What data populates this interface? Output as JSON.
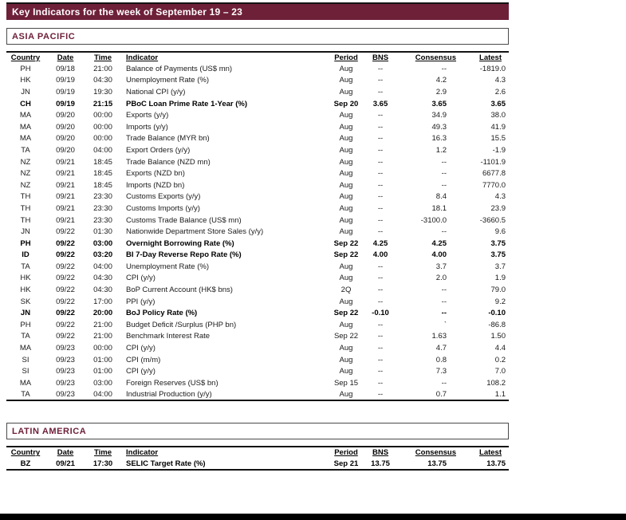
{
  "page": {
    "title": "Key Indicators for the week of September 19 – 23"
  },
  "colors": {
    "brand_maroon": "#6e2039",
    "bar_black": "#000000",
    "background": "#ffffff"
  },
  "columns": [
    "Country",
    "Date",
    "Time",
    "Indicator",
    "Period",
    "BNS",
    "Consensus",
    "Latest"
  ],
  "sections": [
    {
      "name": "ASIA PACIFIC",
      "rows": [
        {
          "bold": false,
          "cells": [
            "PH",
            "09/18",
            "21:00",
            "Balance of Payments (US$ mn)",
            "Aug",
            "--",
            "--",
            "-1819.0"
          ]
        },
        {
          "bold": false,
          "cells": [
            "HK",
            "09/19",
            "04:30",
            "Unemployment Rate (%)",
            "Aug",
            "--",
            "4.2",
            "4.3"
          ]
        },
        {
          "bold": false,
          "cells": [
            "JN",
            "09/19",
            "19:30",
            "National CPI (y/y)",
            "Aug",
            "--",
            "2.9",
            "2.6"
          ]
        },
        {
          "bold": true,
          "cells": [
            "CH",
            "09/19",
            "21:15",
            "PBoC Loan Prime Rate 1-Year (%)",
            "Sep 20",
            "3.65",
            "3.65",
            "3.65"
          ]
        },
        {
          "bold": false,
          "cells": [
            "MA",
            "09/20",
            "00:00",
            "Exports (y/y)",
            "Aug",
            "--",
            "34.9",
            "38.0"
          ]
        },
        {
          "bold": false,
          "cells": [
            "MA",
            "09/20",
            "00:00",
            "Imports (y/y)",
            "Aug",
            "--",
            "49.3",
            "41.9"
          ]
        },
        {
          "bold": false,
          "cells": [
            "MA",
            "09/20",
            "00:00",
            "Trade Balance (MYR bn)",
            "Aug",
            "--",
            "16.3",
            "15.5"
          ]
        },
        {
          "bold": false,
          "cells": [
            "TA",
            "09/20",
            "04:00",
            "Export Orders (y/y)",
            "Aug",
            "--",
            "1.2",
            "-1.9"
          ]
        },
        {
          "bold": false,
          "cells": [
            "NZ",
            "09/21",
            "18:45",
            "Trade Balance (NZD mn)",
            "Aug",
            "--",
            "--",
            "-1101.9"
          ]
        },
        {
          "bold": false,
          "cells": [
            "NZ",
            "09/21",
            "18:45",
            "Exports (NZD bn)",
            "Aug",
            "--",
            "--",
            "6677.8"
          ]
        },
        {
          "bold": false,
          "cells": [
            "NZ",
            "09/21",
            "18:45",
            "Imports (NZD bn)",
            "Aug",
            "--",
            "--",
            "7770.0"
          ]
        },
        {
          "bold": false,
          "cells": [
            "TH",
            "09/21",
            "23:30",
            "Customs Exports (y/y)",
            "Aug",
            "--",
            "8.4",
            "4.3"
          ]
        },
        {
          "bold": false,
          "cells": [
            "TH",
            "09/21",
            "23:30",
            "Customs Imports (y/y)",
            "Aug",
            "--",
            "18.1",
            "23.9"
          ]
        },
        {
          "bold": false,
          "cells": [
            "TH",
            "09/21",
            "23:30",
            "Customs Trade Balance (US$ mn)",
            "Aug",
            "--",
            "-3100.0",
            "-3660.5"
          ]
        },
        {
          "bold": false,
          "cells": [
            "JN",
            "09/22",
            "01:30",
            "Nationwide Department Store Sales (y/y)",
            "Aug",
            "--",
            "--",
            "9.6"
          ]
        },
        {
          "bold": true,
          "cells": [
            "PH",
            "09/22",
            "03:00",
            "Overnight Borrowing Rate (%)",
            "Sep 22",
            "4.25",
            "4.25",
            "3.75"
          ]
        },
        {
          "bold": true,
          "cells": [
            "ID",
            "09/22",
            "03:20",
            "BI 7-Day Reverse Repo Rate (%)",
            "Sep 22",
            "4.00",
            "4.00",
            "3.75"
          ]
        },
        {
          "bold": false,
          "cells": [
            "TA",
            "09/22",
            "04:00",
            "Unemployment Rate (%)",
            "Aug",
            "--",
            "3.7",
            "3.7"
          ]
        },
        {
          "bold": false,
          "cells": [
            "HK",
            "09/22",
            "04:30",
            "CPI (y/y)",
            "Aug",
            "--",
            "2.0",
            "1.9"
          ]
        },
        {
          "bold": false,
          "cells": [
            "HK",
            "09/22",
            "04:30",
            "BoP Current Account (HK$ bns)",
            "2Q",
            "--",
            "--",
            "79.0"
          ]
        },
        {
          "bold": false,
          "cells": [
            "SK",
            "09/22",
            "17:00",
            "PPI (y/y)",
            "Aug",
            "--",
            "--",
            "9.2"
          ]
        },
        {
          "bold": true,
          "cells": [
            "JN",
            "09/22",
            "20:00",
            "BoJ Policy Rate (%)",
            "Sep 22",
            "-0.10",
            "--",
            "-0.10"
          ]
        },
        {
          "bold": false,
          "cells": [
            "PH",
            "09/22",
            "21:00",
            "Budget Deficit /Surplus (PHP bn)",
            "Aug",
            "--",
            "`",
            "-86.8"
          ]
        },
        {
          "bold": false,
          "cells": [
            "TA",
            "09/22",
            "21:00",
            "Benchmark Interest Rate",
            "Sep 22",
            "--",
            "1.63",
            "1.50"
          ]
        },
        {
          "bold": false,
          "cells": [
            "MA",
            "09/23",
            "00:00",
            "CPI (y/y)",
            "Aug",
            "--",
            "4.7",
            "4.4"
          ]
        },
        {
          "bold": false,
          "cells": [
            "SI",
            "09/23",
            "01:00",
            "CPI (m/m)",
            "Aug",
            "--",
            "0.8",
            "0.2"
          ]
        },
        {
          "bold": false,
          "cells": [
            "SI",
            "09/23",
            "01:00",
            "CPI (y/y)",
            "Aug",
            "--",
            "7.3",
            "7.0"
          ]
        },
        {
          "bold": false,
          "cells": [
            "MA",
            "09/23",
            "03:00",
            "Foreign Reserves (US$ bn)",
            "Sep 15",
            "--",
            "--",
            "108.2"
          ]
        },
        {
          "bold": false,
          "cells": [
            "TA",
            "09/23",
            "04:00",
            "Industrial Production (y/y)",
            "Aug",
            "--",
            "0.7",
            "1.1"
          ]
        }
      ]
    },
    {
      "name": "LATIN AMERICA",
      "rows": [
        {
          "bold": true,
          "cells": [
            "BZ",
            "09/21",
            "17:30",
            "SELIC Target Rate (%)",
            "Sep 21",
            "13.75",
            "13.75",
            "13.75"
          ]
        }
      ]
    }
  ]
}
